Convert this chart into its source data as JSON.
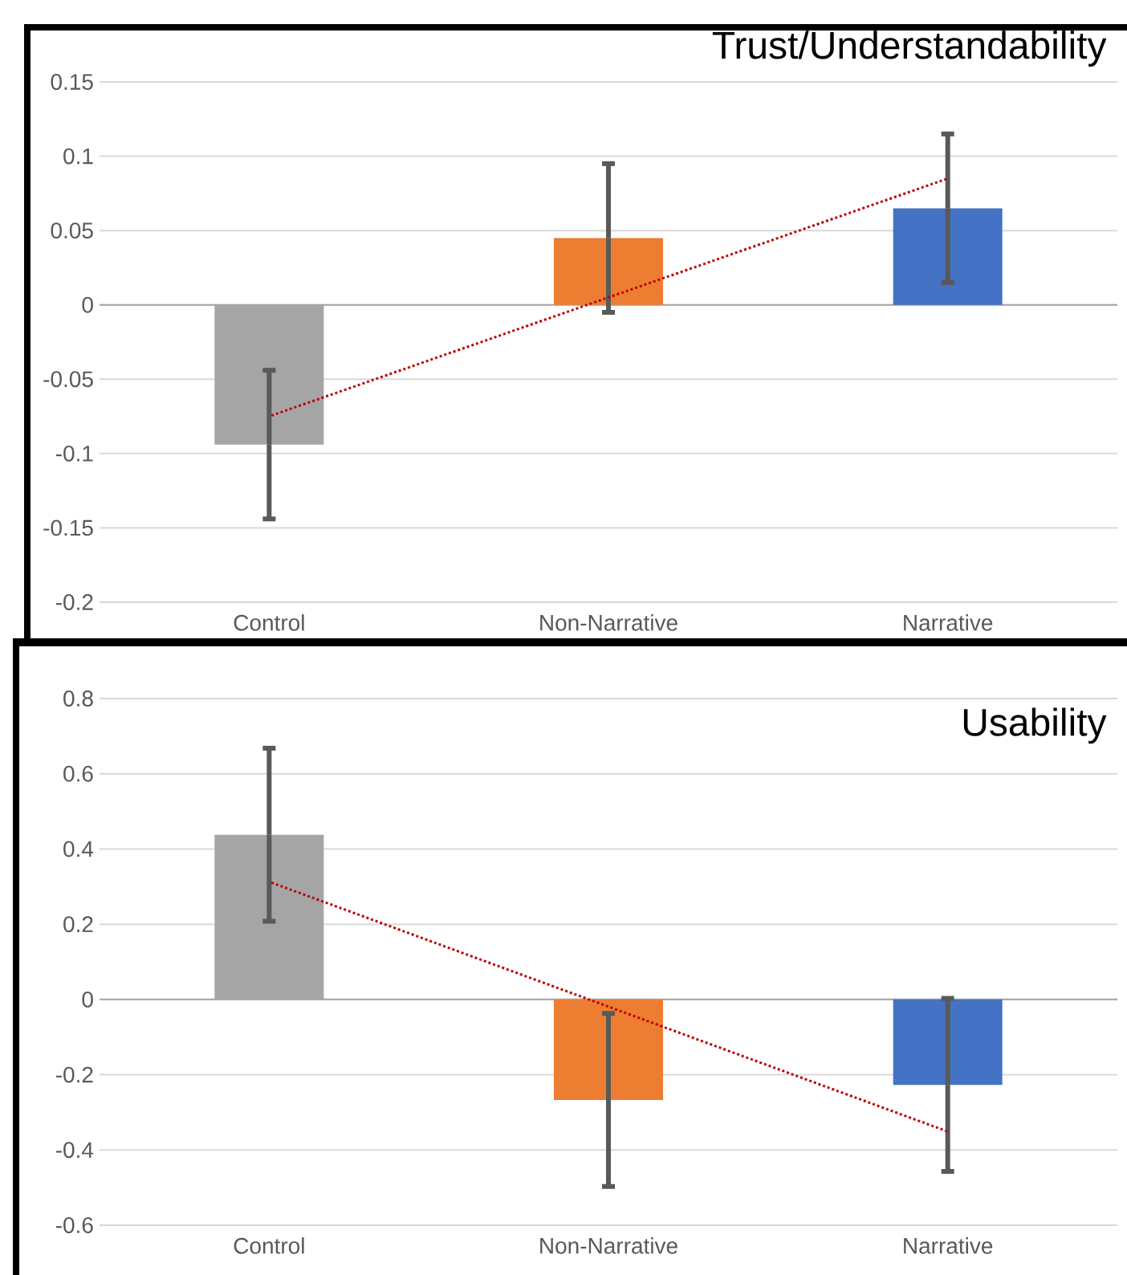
{
  "chart_data": [
    {
      "type": "bar",
      "title": "Trust/Understandability",
      "categories": [
        "Control",
        "Non-Narrative",
        "Narrative"
      ],
      "series": [
        {
          "values": [
            -0.094,
            0.045,
            0.065
          ],
          "colors": [
            "#a5a5a5",
            "#ed7d31",
            "#4472c4"
          ],
          "errors": [
            0.05,
            0.05,
            0.05
          ]
        },
        {
          "type": "line",
          "color": "#c00000",
          "line_style": "dotted",
          "marker": "none",
          "values": [
            -0.075,
            0.005,
            0.085
          ]
        }
      ],
      "ylim": [
        -0.2,
        0.15
      ],
      "yticks": [
        -0.2,
        -0.15,
        -0.1,
        -0.05,
        0,
        0.05,
        0.1,
        0.15
      ],
      "grid": "y"
    },
    {
      "type": "bar",
      "title": "Usability",
      "categories": [
        "Control",
        "Non-Narrative",
        "Narrative"
      ],
      "series": [
        {
          "values": [
            0.438,
            -0.267,
            -0.227
          ],
          "colors": [
            "#a5a5a5",
            "#ed7d31",
            "#4472c4"
          ],
          "errors": [
            0.23,
            0.23,
            0.23
          ]
        },
        {
          "type": "line",
          "color": "#c00000",
          "line_style": "dotted",
          "marker": "none",
          "values": [
            0.313,
            -0.019,
            -0.351
          ]
        }
      ],
      "ylim": [
        -0.6,
        0.8
      ],
      "yticks": [
        -0.6,
        -0.4,
        -0.2,
        0,
        0.2,
        0.4,
        0.6,
        0.8
      ],
      "grid": "y"
    }
  ]
}
